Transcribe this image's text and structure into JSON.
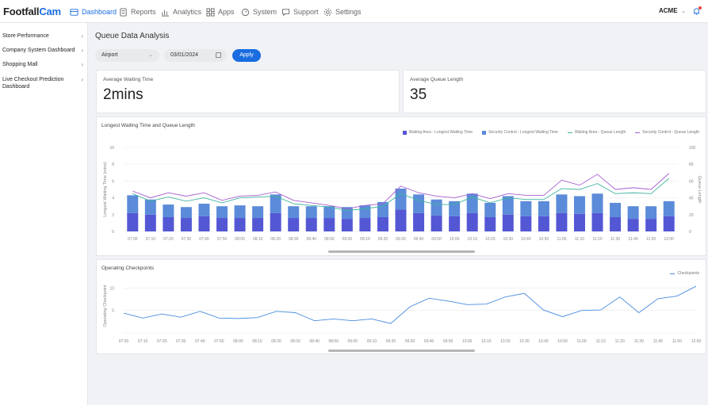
{
  "brand": {
    "name_a": "Footfall",
    "name_b": "Cam"
  },
  "nav": [
    {
      "label": "Dashboard",
      "icon": "dashboard-icon",
      "active": true
    },
    {
      "label": "Reports",
      "icon": "reports-icon"
    },
    {
      "label": "Analytics",
      "icon": "analytics-icon"
    },
    {
      "label": "Apps",
      "icon": "apps-icon"
    },
    {
      "label": "System",
      "icon": "system-icon"
    },
    {
      "label": "Support",
      "icon": "support-icon"
    },
    {
      "label": "Settings",
      "icon": "settings-icon"
    }
  ],
  "account": {
    "label": "ACME"
  },
  "sidebar": {
    "items": [
      {
        "label": "Store Performance"
      },
      {
        "label": "Company System Dashboard"
      },
      {
        "label": "Shopping Mall"
      },
      {
        "label": "Live Checkout Prediction Dashboard"
      }
    ]
  },
  "page": {
    "title": "Queue Data Analysis"
  },
  "filters": {
    "location": "Airport",
    "date": "03/01/2024",
    "apply_label": "Apply"
  },
  "kpis": {
    "avg_wait_label": "Average Waiting Time",
    "avg_wait_value": "2mins",
    "avg_queue_label": "Average Queue Length",
    "avg_queue_value": "35"
  },
  "colors": {
    "accent": "#1a6de0",
    "waiting_bar": "#5457d4",
    "security_bar": "#5b8bd9",
    "waiting_line": "#3fb5a0",
    "security_line": "#a55ed1",
    "checkpoint_line": "#4a8de0"
  },
  "chart_data": [
    {
      "type": "bar",
      "title": "Longest Waiting Time and Queue Length",
      "ylabel": "Longest Waiting Time (mins)",
      "y2label": "Queue Length",
      "ylim": [
        0,
        10
      ],
      "y2lim": [
        0,
        100
      ],
      "yticks": [
        "0",
        "2",
        "4",
        "6",
        "8",
        "10"
      ],
      "y2ticks": [
        "0",
        "20",
        "40",
        "60",
        "80",
        "100"
      ],
      "stacked": true,
      "categories": [
        "07:00",
        "07:10",
        "07:20",
        "07:30",
        "07:40",
        "07:50",
        "08:00",
        "08:10",
        "08:20",
        "08:30",
        "08:40",
        "08:50",
        "09:00",
        "09:10",
        "09:20",
        "09:30",
        "09:40",
        "09:50",
        "10:00",
        "10:10",
        "10:20",
        "10:30",
        "10:40",
        "10:50",
        "11:00",
        "11:10",
        "11:20",
        "11:30",
        "11:40",
        "11:50",
        "12:00"
      ],
      "series": [
        {
          "name": "Waiting Area - Longest Waiting Time",
          "kind": "bar",
          "values": [
            2.2,
            2.0,
            1.7,
            1.6,
            1.8,
            1.6,
            1.6,
            1.6,
            2.2,
            1.6,
            1.6,
            1.6,
            1.5,
            1.6,
            1.7,
            2.6,
            2.2,
            1.9,
            1.8,
            2.2,
            1.7,
            2.0,
            1.8,
            1.8,
            2.2,
            2.1,
            2.2,
            1.7,
            1.5,
            1.5,
            1.8
          ]
        },
        {
          "name": "Security Control - Longest Waiting Time",
          "kind": "bar",
          "values": [
            2.1,
            1.8,
            1.5,
            1.3,
            1.5,
            1.4,
            1.5,
            1.4,
            2.2,
            1.4,
            1.4,
            1.4,
            1.4,
            1.5,
            1.8,
            2.5,
            2.2,
            1.9,
            1.8,
            2.3,
            1.7,
            2.2,
            1.8,
            1.8,
            2.2,
            2.1,
            2.3,
            1.7,
            1.5,
            1.5,
            1.8
          ]
        },
        {
          "name": "Waiting Area - Queue Length",
          "kind": "line",
          "axis": "right",
          "values": [
            45,
            36,
            41,
            36,
            40,
            34,
            40,
            41,
            42,
            33,
            31,
            29,
            25,
            27,
            30,
            45,
            37,
            32,
            32,
            41,
            34,
            40,
            38,
            38,
            51,
            50,
            57,
            45,
            46,
            45,
            63
          ]
        },
        {
          "name": "Security Control - Queue Length",
          "kind": "line",
          "axis": "right",
          "values": [
            48,
            40,
            46,
            42,
            46,
            37,
            42,
            43,
            47,
            37,
            34,
            31,
            27,
            31,
            33,
            54,
            46,
            42,
            40,
            45,
            39,
            45,
            43,
            43,
            61,
            55,
            68,
            50,
            52,
            50,
            69
          ]
        }
      ]
    },
    {
      "type": "line",
      "title": "Operating Checkpoints",
      "ylabel": "Operating Checkpoint",
      "ylim": [
        0,
        12
      ],
      "yticks": [
        "5",
        "10"
      ],
      "categories": [
        "07:00",
        "07:10",
        "07:20",
        "07:30",
        "07:40",
        "07:50",
        "08:00",
        "08:10",
        "08:20",
        "08:30",
        "08:40",
        "08:50",
        "09:00",
        "09:10",
        "09:20",
        "09:30",
        "09:40",
        "09:50",
        "10:00",
        "10:10",
        "10:20",
        "10:30",
        "10:40",
        "10:50",
        "11:00",
        "11:10",
        "11:20",
        "11:30",
        "11:40",
        "11:50",
        "12:00"
      ],
      "series": [
        {
          "name": "Checkpoints",
          "values": [
            4.4,
            3.3,
            4.2,
            3.5,
            4.8,
            3.3,
            3.2,
            3.4,
            4.8,
            4.5,
            2.7,
            3.1,
            2.7,
            3.1,
            2.1,
            5.8,
            7.7,
            7.1,
            6.3,
            6.4,
            8.0,
            8.8,
            5.1,
            3.6,
            5.0,
            5.1,
            8.0,
            4.5,
            7.6,
            8.2,
            10.4
          ]
        }
      ]
    }
  ]
}
